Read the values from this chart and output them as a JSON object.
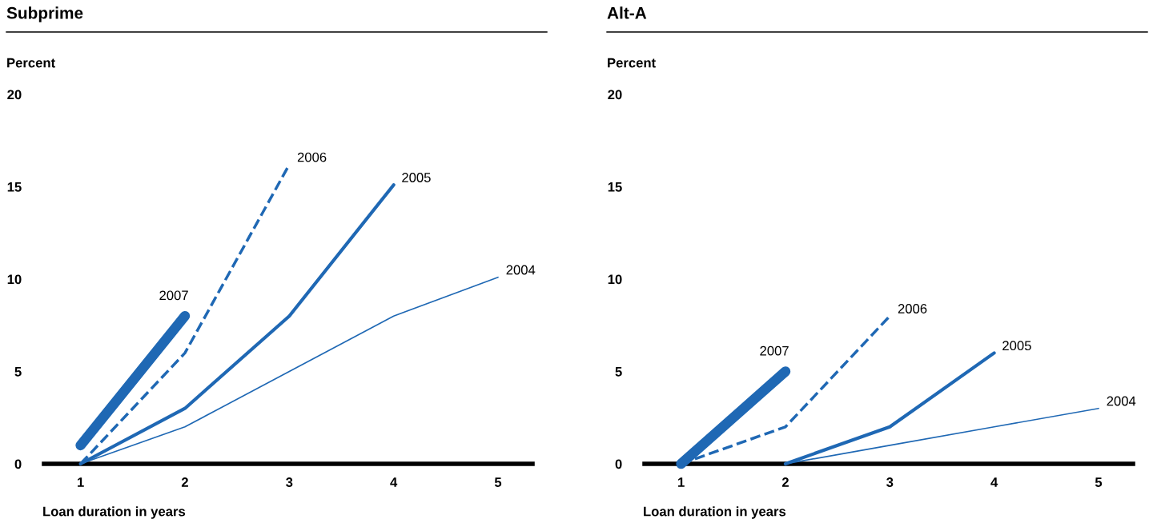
{
  "chart_data": [
    {
      "type": "line",
      "title": "Subprime",
      "ylabel": "Percent",
      "xlabel": "Loan duration in years",
      "xlim": [
        0.65,
        5.33
      ],
      "xticks": [
        1,
        2,
        3,
        4,
        5
      ],
      "ylim": [
        0,
        20
      ],
      "yticks": [
        0,
        5,
        10,
        15,
        20
      ],
      "grid": false,
      "legend": false,
      "marker": "none",
      "series": [
        {
          "name": "2007",
          "color": "#1f68b4",
          "line_style": "solid",
          "x": [
            1,
            2
          ],
          "values": [
            1,
            8
          ]
        },
        {
          "name": "2006",
          "color": "#1f68b4",
          "line_style": "dashed",
          "x": [
            1,
            2,
            3
          ],
          "values": [
            0,
            6,
            16.2
          ]
        },
        {
          "name": "2005",
          "color": "#1f68b4",
          "line_style": "solid",
          "x": [
            1,
            2,
            3,
            4
          ],
          "values": [
            0,
            3,
            8,
            15.1
          ]
        },
        {
          "name": "2004",
          "color": "#1f68b4",
          "line_style": "solid",
          "x": [
            1,
            2,
            3,
            4,
            5
          ],
          "values": [
            0,
            2,
            5,
            8,
            10.1
          ]
        }
      ]
    },
    {
      "type": "line",
      "title": "Alt-A",
      "ylabel": "Percent",
      "xlabel": "Loan duration in years",
      "xlim": [
        0.65,
        5.33
      ],
      "xticks": [
        1,
        2,
        3,
        4,
        5
      ],
      "ylim": [
        0,
        20
      ],
      "yticks": [
        0,
        5,
        10,
        15,
        20
      ],
      "grid": false,
      "legend": false,
      "marker": "none",
      "series": [
        {
          "name": "2007",
          "color": "#1f68b4",
          "line_style": "solid",
          "x": [
            1,
            2
          ],
          "values": [
            0,
            5
          ]
        },
        {
          "name": "2006",
          "color": "#1f68b4",
          "line_style": "dashed",
          "x": [
            1,
            2,
            3
          ],
          "values": [
            0,
            2,
            8
          ]
        },
        {
          "name": "2005",
          "color": "#1f68b4",
          "line_style": "solid",
          "x": [
            2,
            3,
            4
          ],
          "values": [
            0,
            2,
            6
          ]
        },
        {
          "name": "2004",
          "color": "#1f68b4",
          "line_style": "solid",
          "x": [
            2,
            3,
            4,
            5
          ],
          "values": [
            0,
            1,
            2,
            3
          ]
        }
      ]
    }
  ]
}
